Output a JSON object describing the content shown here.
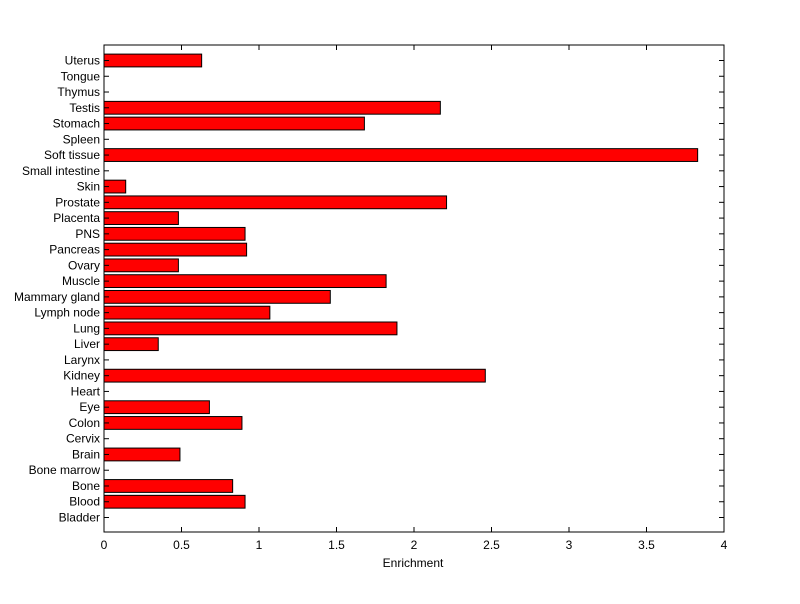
{
  "chart_data": {
    "type": "bar",
    "orientation": "horizontal",
    "title": "",
    "xlabel": "Enrichment",
    "ylabel": "",
    "xlim": [
      0,
      4
    ],
    "xticks": [
      0,
      0.5,
      1,
      1.5,
      2,
      2.5,
      3,
      3.5,
      4
    ],
    "xtick_labels": [
      "0",
      "0.5",
      "1",
      "1.5",
      "2",
      "2.5",
      "3",
      "3.5",
      "4"
    ],
    "grid": false,
    "legend": "none",
    "bar_color": "#ff0000",
    "bar_edge_color": "#000000",
    "categories": [
      "Bladder",
      "Blood",
      "Bone",
      "Bone marrow",
      "Brain",
      "Cervix",
      "Colon",
      "Eye",
      "Heart",
      "Kidney",
      "Larynx",
      "Liver",
      "Lung",
      "Lymph node",
      "Mammary gland",
      "Muscle",
      "Ovary",
      "Pancreas",
      "PNS",
      "Placenta",
      "Prostate",
      "Skin",
      "Small intestine",
      "Soft tissue",
      "Spleen",
      "Stomach",
      "Testis",
      "Thymus",
      "Tongue",
      "Uterus"
    ],
    "values": [
      0,
      0.91,
      0.83,
      0,
      0.49,
      0,
      0.89,
      0.68,
      0,
      2.46,
      0,
      0.35,
      1.89,
      1.07,
      1.46,
      1.82,
      0.48,
      0.92,
      0.91,
      0.48,
      2.21,
      0.14,
      0,
      3.83,
      0,
      1.68,
      2.17,
      0,
      0,
      0.63
    ]
  }
}
